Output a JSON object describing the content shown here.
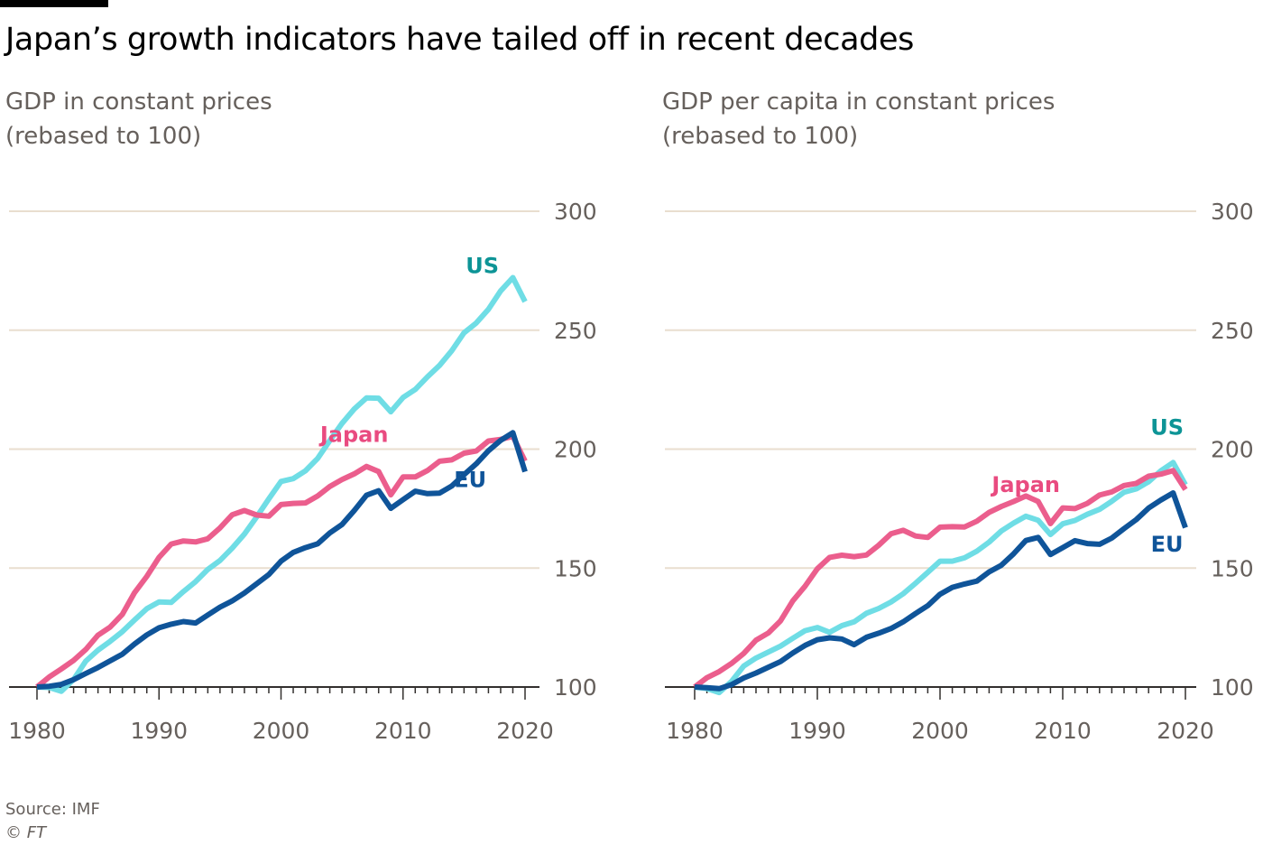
{
  "header": {
    "title": "Japan’s growth indicators have tailed off in recent decades"
  },
  "footer": {
    "source": "Source: IMF",
    "copyright": "© FT"
  },
  "colors": {
    "US": "#6fdde5",
    "Japan": "#eb5e8d",
    "EU": "#0f5499",
    "US_label": "#0d9496",
    "Japan_label": "#e94b80",
    "EU_label": "#0f5499",
    "grid": "#e9decf",
    "axis": "#33302e",
    "tick_text": "#66605c"
  },
  "chart_data": [
    {
      "type": "line",
      "subtitle_lines": [
        "GDP in constant prices",
        "(rebased to 100)"
      ],
      "x": [
        1980,
        1981,
        1982,
        1983,
        1984,
        1985,
        1986,
        1987,
        1988,
        1989,
        1990,
        1991,
        1992,
        1993,
        1994,
        1995,
        1996,
        1997,
        1998,
        1999,
        2000,
        2001,
        2002,
        2003,
        2004,
        2005,
        2006,
        2007,
        2008,
        2009,
        2010,
        2011,
        2012,
        2013,
        2014,
        2015,
        2016,
        2017,
        2018,
        2019,
        2020
      ],
      "series": [
        {
          "name": "US",
          "values": [
            100,
            99.8,
            98.2,
            103.2,
            110.9,
            115.5,
            119.2,
            123.3,
            128.2,
            132.9,
            135.8,
            135.6,
            140.1,
            144.3,
            149.4,
            153.2,
            158.4,
            164.3,
            171.5,
            179.1,
            186.4,
            187.6,
            190.9,
            196.1,
            203.6,
            210.8,
            216.9,
            221.5,
            221.4,
            215.7,
            221.7,
            225.1,
            230.4,
            235.2,
            241.4,
            248.9,
            253.0,
            258.8,
            266.5,
            272.1,
            262.0
          ]
        },
        {
          "name": "Japan",
          "values": [
            100,
            104.2,
            107.6,
            111.2,
            115.8,
            121.8,
            125.2,
            130.6,
            139.7,
            146.5,
            154.5,
            160.1,
            161.4,
            161.0,
            162.3,
            166.9,
            172.4,
            174.2,
            172.3,
            171.8,
            176.7,
            177.2,
            177.4,
            180.3,
            184.3,
            187.2,
            189.6,
            192.7,
            190.6,
            180.8,
            188.3,
            188.3,
            191.0,
            194.9,
            195.5,
            198.3,
            199.2,
            203.4,
            204.1,
            205.4,
            195.0
          ]
        },
        {
          "name": "EU",
          "values": [
            100,
            100.3,
            101.1,
            103.1,
            105.7,
            108.2,
            111.0,
            113.8,
            118.1,
            121.9,
            124.9,
            126.4,
            127.5,
            126.9,
            130.3,
            133.6,
            136.2,
            139.5,
            143.4,
            147.3,
            152.9,
            156.6,
            158.6,
            160.2,
            164.8,
            168.3,
            174.2,
            180.6,
            182.5,
            175.1,
            178.8,
            182.3,
            181.3,
            181.5,
            184.5,
            189.3,
            193.8,
            199.3,
            203.7,
            206.9,
            190.5
          ]
        }
      ],
      "series_labels": [
        {
          "name": "US",
          "text": "US"
        },
        {
          "name": "Japan",
          "text": "Japan"
        },
        {
          "name": "EU",
          "text": "EU"
        }
      ],
      "ylim": [
        100,
        300
      ],
      "yticks": [
        "100",
        "150",
        "200",
        "250",
        "300"
      ],
      "xticks": [
        "1980",
        "1990",
        "2000",
        "2010",
        "2020"
      ],
      "xlim": [
        1980,
        2020
      ],
      "grid": true
    },
    {
      "type": "line",
      "subtitle_lines": [
        "GDP per capita in constant prices",
        "(rebased to 100)"
      ],
      "x": [
        1980,
        1981,
        1982,
        1983,
        1984,
        1985,
        1986,
        1987,
        1988,
        1989,
        1990,
        1991,
        1992,
        1993,
        1994,
        1995,
        1996,
        1997,
        1998,
        1999,
        2000,
        2001,
        2002,
        2003,
        2004,
        2005,
        2006,
        2007,
        2008,
        2009,
        2010,
        2011,
        2012,
        2013,
        2014,
        2015,
        2016,
        2017,
        2018,
        2019,
        2020
      ],
      "series": [
        {
          "name": "US",
          "values": [
            100,
            99.4,
            97.7,
            102.3,
            108.8,
            112.2,
            114.7,
            117.2,
            120.5,
            123.7,
            125.0,
            123.0,
            125.8,
            127.4,
            131.0,
            133.0,
            135.7,
            139.2,
            143.6,
            148.2,
            152.9,
            152.9,
            154.3,
            157.1,
            160.9,
            165.6,
            168.9,
            171.8,
            170.1,
            164.1,
            168.6,
            170.0,
            172.6,
            174.7,
            178.1,
            181.9,
            183.3,
            186.3,
            190.9,
            194.4,
            185.0
          ]
        },
        {
          "name": "Japan",
          "values": [
            100,
            103.9,
            106.5,
            109.9,
            114.1,
            119.7,
            122.7,
            127.8,
            136.2,
            142.4,
            149.7,
            154.5,
            155.4,
            154.8,
            155.5,
            159.6,
            164.4,
            165.9,
            163.5,
            162.9,
            167.2,
            167.4,
            167.3,
            169.7,
            173.4,
            175.9,
            178.0,
            180.3,
            178.0,
            168.7,
            175.3,
            175.0,
            177.2,
            180.7,
            182.0,
            184.7,
            185.6,
            188.6,
            189.5,
            191.0,
            183.0
          ]
        },
        {
          "name": "EU",
          "values": [
            100,
            99.7,
            99.3,
            101.0,
            103.8,
            105.9,
            108.3,
            110.7,
            114.3,
            117.5,
            119.9,
            120.7,
            120.2,
            117.8,
            120.9,
            122.6,
            124.6,
            127.4,
            130.9,
            134.2,
            139.0,
            141.9,
            143.3,
            144.5,
            148.4,
            151.2,
            156.0,
            161.6,
            162.9,
            155.7,
            158.6,
            161.5,
            160.3,
            160.0,
            162.6,
            166.6,
            170.4,
            175.2,
            178.6,
            181.6,
            167.0
          ]
        }
      ],
      "series_labels": [
        {
          "name": "US",
          "text": "US"
        },
        {
          "name": "Japan",
          "text": "Japan"
        },
        {
          "name": "EU",
          "text": "EU"
        }
      ],
      "ylim": [
        100,
        300
      ],
      "yticks": [
        "100",
        "150",
        "200",
        "250",
        "300"
      ],
      "xticks": [
        "1980",
        "1990",
        "2000",
        "2010",
        "2020"
      ],
      "xlim": [
        1980,
        2020
      ],
      "grid": true
    }
  ]
}
